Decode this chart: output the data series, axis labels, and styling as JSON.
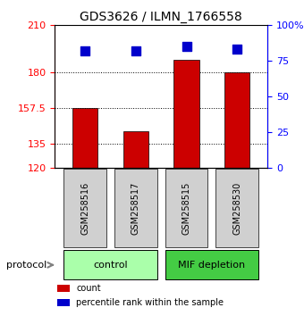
{
  "title": "GDS3626 / ILMN_1766558",
  "samples": [
    "GSM258516",
    "GSM258517",
    "GSM258515",
    "GSM258530"
  ],
  "bar_values": [
    157.5,
    143.0,
    188.0,
    180.0
  ],
  "bar_bottom": 120,
  "bar_color": "#cc0000",
  "percentile_values": [
    82,
    82,
    85,
    83
  ],
  "percentile_color": "#0000cc",
  "left_yticks": [
    120,
    135,
    157.5,
    180,
    210
  ],
  "right_yticks": [
    0,
    25,
    50,
    75,
    100
  ],
  "ylim": [
    120,
    210
  ],
  "groups": [
    {
      "label": "control",
      "samples": [
        0,
        1
      ],
      "color": "#aaffaa"
    },
    {
      "label": "MIF depletion",
      "samples": [
        2,
        3
      ],
      "color": "#44cc44"
    }
  ],
  "protocol_label": "protocol",
  "legend_items": [
    {
      "label": "count",
      "color": "#cc0000"
    },
    {
      "label": "percentile rank within the sample",
      "color": "#0000cc"
    }
  ],
  "grid_yticks": [
    135,
    157.5,
    180
  ],
  "dot_size": 50
}
